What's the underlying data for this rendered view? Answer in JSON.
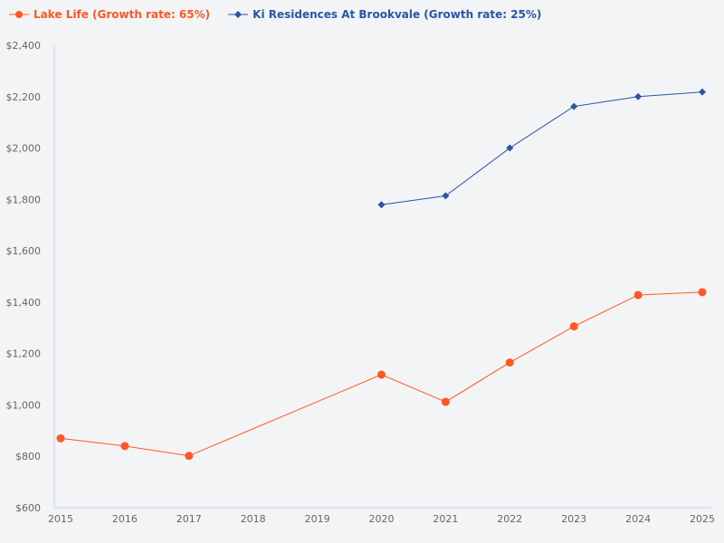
{
  "chart_data": {
    "type": "line",
    "title": "",
    "xlabel": "",
    "ylabel": "",
    "x": [
      2015,
      2016,
      2017,
      2018,
      2019,
      2020,
      2021,
      2022,
      2023,
      2024,
      2025
    ],
    "x_tick_labels": [
      "2015",
      "2016",
      "2017",
      "2018",
      "2019",
      "2020",
      "2021",
      "2022",
      "2023",
      "2024",
      "2025"
    ],
    "ylim": [
      600,
      2400
    ],
    "y_ticks": [
      600,
      800,
      1000,
      1200,
      1400,
      1600,
      1800,
      2000,
      2200,
      2400
    ],
    "y_tick_labels": [
      "$600",
      "$800",
      "$1,000",
      "$1,200",
      "$1,400",
      "$1,600",
      "$1,800",
      "$2,000",
      "$2,200",
      "$2,400"
    ],
    "grid": false,
    "legend_placement": "top-left",
    "series": [
      {
        "name": "Lake Life (Growth rate: 65%)",
        "color": "#ff5722",
        "marker": "circle",
        "points": [
          [
            2015,
            870
          ],
          [
            2016,
            840
          ],
          [
            2017,
            802
          ],
          [
            2020,
            1118
          ],
          [
            2021,
            1012
          ],
          [
            2022,
            1165
          ],
          [
            2023,
            1306
          ],
          [
            2024,
            1428
          ],
          [
            2025,
            1439
          ]
        ]
      },
      {
        "name": "Ki Residences At Brookvale (Growth rate: 25%)",
        "color": "#2a55a5",
        "marker": "diamond",
        "points": [
          [
            2020,
            1779
          ],
          [
            2021,
            1814
          ],
          [
            2022,
            2000
          ],
          [
            2023,
            2162
          ],
          [
            2024,
            2200
          ],
          [
            2025,
            2218
          ]
        ]
      }
    ]
  }
}
